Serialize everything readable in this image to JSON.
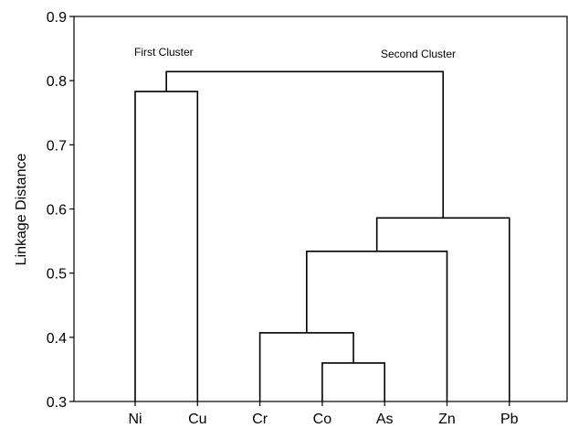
{
  "chart_data": {
    "type": "dendrogram",
    "leaves": [
      "Ni",
      "Cu",
      "Cr",
      "Co",
      "As",
      "Zn",
      "Pb"
    ],
    "ylabel": "Linkage Distance",
    "xlabel": "",
    "ylim": [
      0.3,
      0.9
    ],
    "yticks": [
      "0.3",
      "0.4",
      "0.5",
      "0.6",
      "0.7",
      "0.8",
      "0.9"
    ],
    "merges": [
      {
        "left": "Co",
        "right": "As",
        "height": 0.36
      },
      {
        "left": "Cr",
        "right": "Co-As",
        "height": 0.407
      },
      {
        "left": "Cr-Co-As",
        "right": "Zn",
        "height": 0.534
      },
      {
        "left": "Cr-Co-As-Zn",
        "right": "Pb",
        "height": 0.586
      },
      {
        "left": "Ni",
        "right": "Cu",
        "height": 0.783
      },
      {
        "left": "Ni-Cu",
        "right": "Cr-Co-As-Zn-Pb",
        "height": 0.814
      }
    ],
    "annotations": [
      "First Cluster",
      "Second Cluster"
    ],
    "grid": false
  }
}
